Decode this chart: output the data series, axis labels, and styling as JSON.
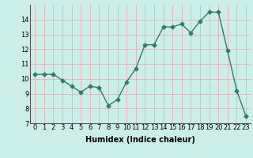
{
  "x": [
    0,
    1,
    2,
    3,
    4,
    5,
    6,
    7,
    8,
    9,
    10,
    11,
    12,
    13,
    14,
    15,
    16,
    17,
    18,
    19,
    20,
    21,
    22,
    23
  ],
  "y": [
    10.3,
    10.3,
    10.3,
    9.9,
    9.5,
    9.1,
    9.5,
    9.4,
    8.2,
    8.6,
    9.8,
    10.7,
    12.3,
    12.3,
    13.5,
    13.5,
    13.7,
    13.1,
    13.9,
    14.5,
    14.5,
    11.9,
    9.2,
    7.5
  ],
  "line_color": "#2e7d6e",
  "marker": "D",
  "markersize": 2.5,
  "linewidth": 1.0,
  "bg_color": "#cceee8",
  "grid_color": "#e8b0b0",
  "xlabel": "Humidex (Indice chaleur)",
  "xlabel_fontsize": 7,
  "tick_fontsize": 6,
  "ylim": [
    7,
    15
  ],
  "xlim": [
    -0.5,
    23.5
  ],
  "yticks": [
    7,
    8,
    9,
    10,
    11,
    12,
    13,
    14
  ],
  "xticks": [
    0,
    1,
    2,
    3,
    4,
    5,
    6,
    7,
    8,
    9,
    10,
    11,
    12,
    13,
    14,
    15,
    16,
    17,
    18,
    19,
    20,
    21,
    22,
    23
  ]
}
